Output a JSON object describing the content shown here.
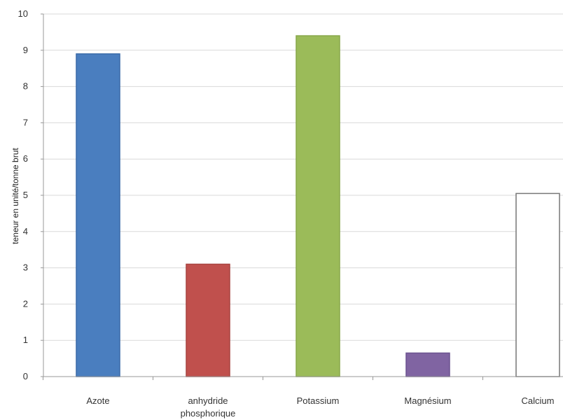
{
  "chart_data": {
    "type": "bar",
    "title": "",
    "xlabel": "",
    "ylabel": "teneur en unité/tonne brut",
    "ylim": [
      0,
      10
    ],
    "yticks": [
      0,
      1,
      2,
      3,
      4,
      5,
      6,
      7,
      8,
      9,
      10
    ],
    "grid": true,
    "legend": "none",
    "categories": [
      {
        "label_lines": [
          "Azote"
        ]
      },
      {
        "label_lines": [
          "anhydride",
          "phosphorique"
        ]
      },
      {
        "label_lines": [
          "Potassium"
        ]
      },
      {
        "label_lines": [
          "Magnésium"
        ]
      },
      {
        "label_lines": [
          "Calcium"
        ]
      }
    ],
    "values": [
      8.9,
      3.1,
      9.4,
      0.65,
      5.05
    ],
    "colors": [
      "#4a7ebf",
      "#c0504d",
      "#9bbb59",
      "#8064a2",
      "#ffffff"
    ],
    "stroke_colors": [
      "#3a6aa8",
      "#a84340",
      "#88a84a",
      "#6c5290",
      "#777777"
    ]
  }
}
